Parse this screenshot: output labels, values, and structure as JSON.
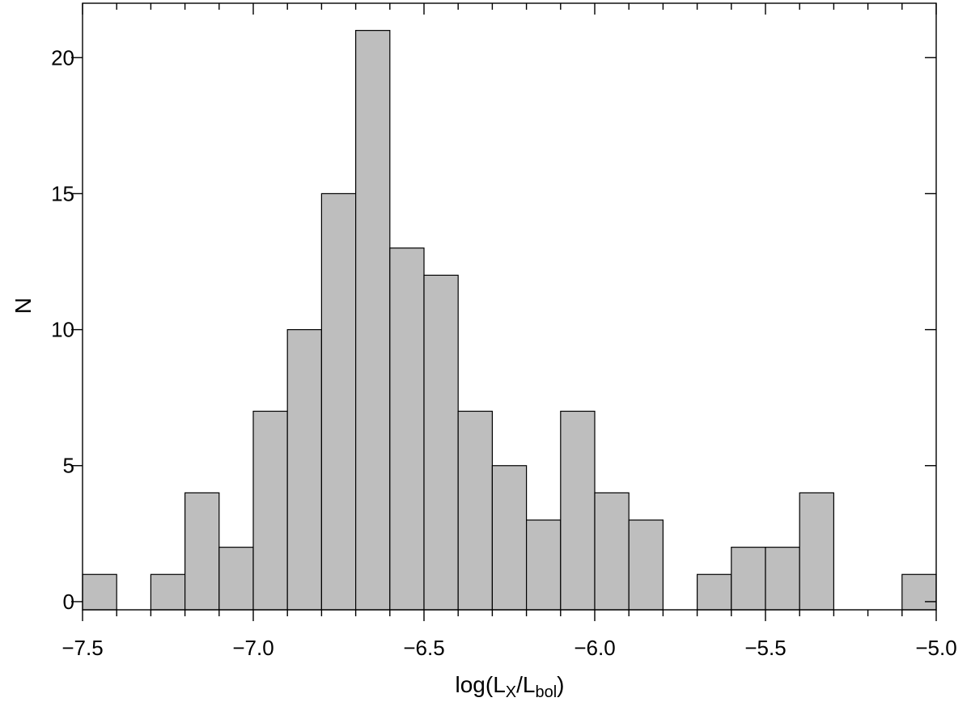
{
  "chart_data": {
    "type": "bar",
    "title": "",
    "xlabel": {
      "prefix": "log(L",
      "sub1": "X",
      "mid": "/L",
      "sub2": "bol",
      "suffix": ")"
    },
    "ylabel": "N",
    "xlim": [
      -7.5,
      -5.0
    ],
    "ylim": [
      -0.3,
      22.0
    ],
    "bin_width": 0.1,
    "bin_left_edges": [
      -7.5,
      -7.4,
      -7.3,
      -7.2,
      -7.1,
      -7.0,
      -6.9,
      -6.8,
      -6.7,
      -6.6,
      -6.5,
      -6.4,
      -6.3,
      -6.2,
      -6.1,
      -6.0,
      -5.9,
      -5.8,
      -5.7,
      -5.6,
      -5.5,
      -5.4,
      -5.3,
      -5.2,
      -5.1
    ],
    "values": [
      1,
      0,
      1,
      4,
      2,
      7,
      10,
      15,
      21,
      13,
      12,
      7,
      5,
      3,
      7,
      4,
      3,
      0,
      1,
      2,
      2,
      4,
      0,
      0,
      1
    ],
    "x_major_ticks": [
      -7.5,
      -7.0,
      -6.5,
      -6.0,
      -5.5,
      -5.0
    ],
    "x_tick_labels": [
      "−7.5",
      "−7.0",
      "−6.5",
      "−6.0",
      "−5.5",
      "−5.0"
    ],
    "y_major_ticks": [
      0,
      5,
      10,
      15,
      20
    ],
    "y_tick_labels": [
      "0",
      "5",
      "10",
      "15",
      "20"
    ],
    "grid": false,
    "bar_color": "#bebebe",
    "edge_color": "#000000"
  }
}
